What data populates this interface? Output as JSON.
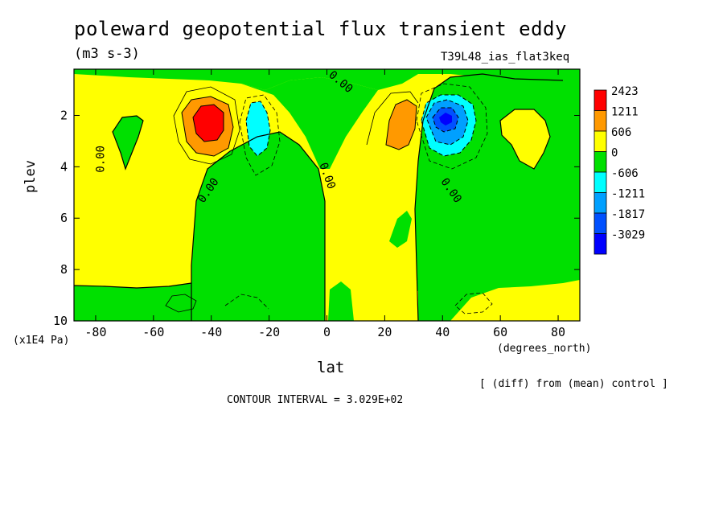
{
  "title": "poleward geopotential flux transient eddy",
  "units": "(m3 s-3)",
  "run_label": "T39L48_ias_flat3keq",
  "note": "[ (diff) from (mean) control ]",
  "contour_interval_text": "CONTOUR INTERVAL = 3.029E+02",
  "chart_data": {
    "type": "heatmap",
    "title": "poleward geopotential flux transient eddy",
    "xlabel": "lat",
    "x_units": "(degrees_north)",
    "ylabel": "plev",
    "y_units": "(x1E4 Pa)",
    "xlim": [
      -87.5,
      87.5
    ],
    "ylim": [
      10,
      0.2
    ],
    "x_ticks": [
      -80,
      -60,
      -40,
      -20,
      0,
      20,
      40,
      60,
      80
    ],
    "x_tick_labels": [
      "-80",
      "-60",
      "-40",
      "-20",
      "0",
      "20",
      "40",
      "60",
      "80"
    ],
    "y_ticks": [
      2,
      4,
      6,
      8,
      10
    ],
    "y_tick_labels": [
      "2",
      "4",
      "6",
      "8",
      "10"
    ],
    "contour_interval": 302.9,
    "contour_label": "0.00",
    "legend": [
      {
        "label": "2423",
        "color": "#ff0000"
      },
      {
        "label": "1211",
        "color": "#ff9900"
      },
      {
        "label": "606",
        "color": "#ffff00"
      },
      {
        "label": "0",
        "color": "#00e000"
      },
      {
        "label": "-606",
        "color": "#00ffff"
      },
      {
        "label": "-1211",
        "color": "#00a0ff"
      },
      {
        "label": "-1817",
        "color": "#0050ff"
      },
      {
        "label": "-3029",
        "color": "#0000ff"
      }
    ],
    "features": [
      {
        "name": "positive maximum",
        "lat": -40,
        "plev": 2.0,
        "value": 2423
      },
      {
        "name": "negative minimum",
        "lat": 41,
        "plev": 2.0,
        "value": -3029
      },
      {
        "name": "secondary negative",
        "lat": -24,
        "plev": 2.5,
        "value": -606
      },
      {
        "name": "secondary positive",
        "lat": 27,
        "plev": 2.2,
        "value": 606
      }
    ]
  }
}
